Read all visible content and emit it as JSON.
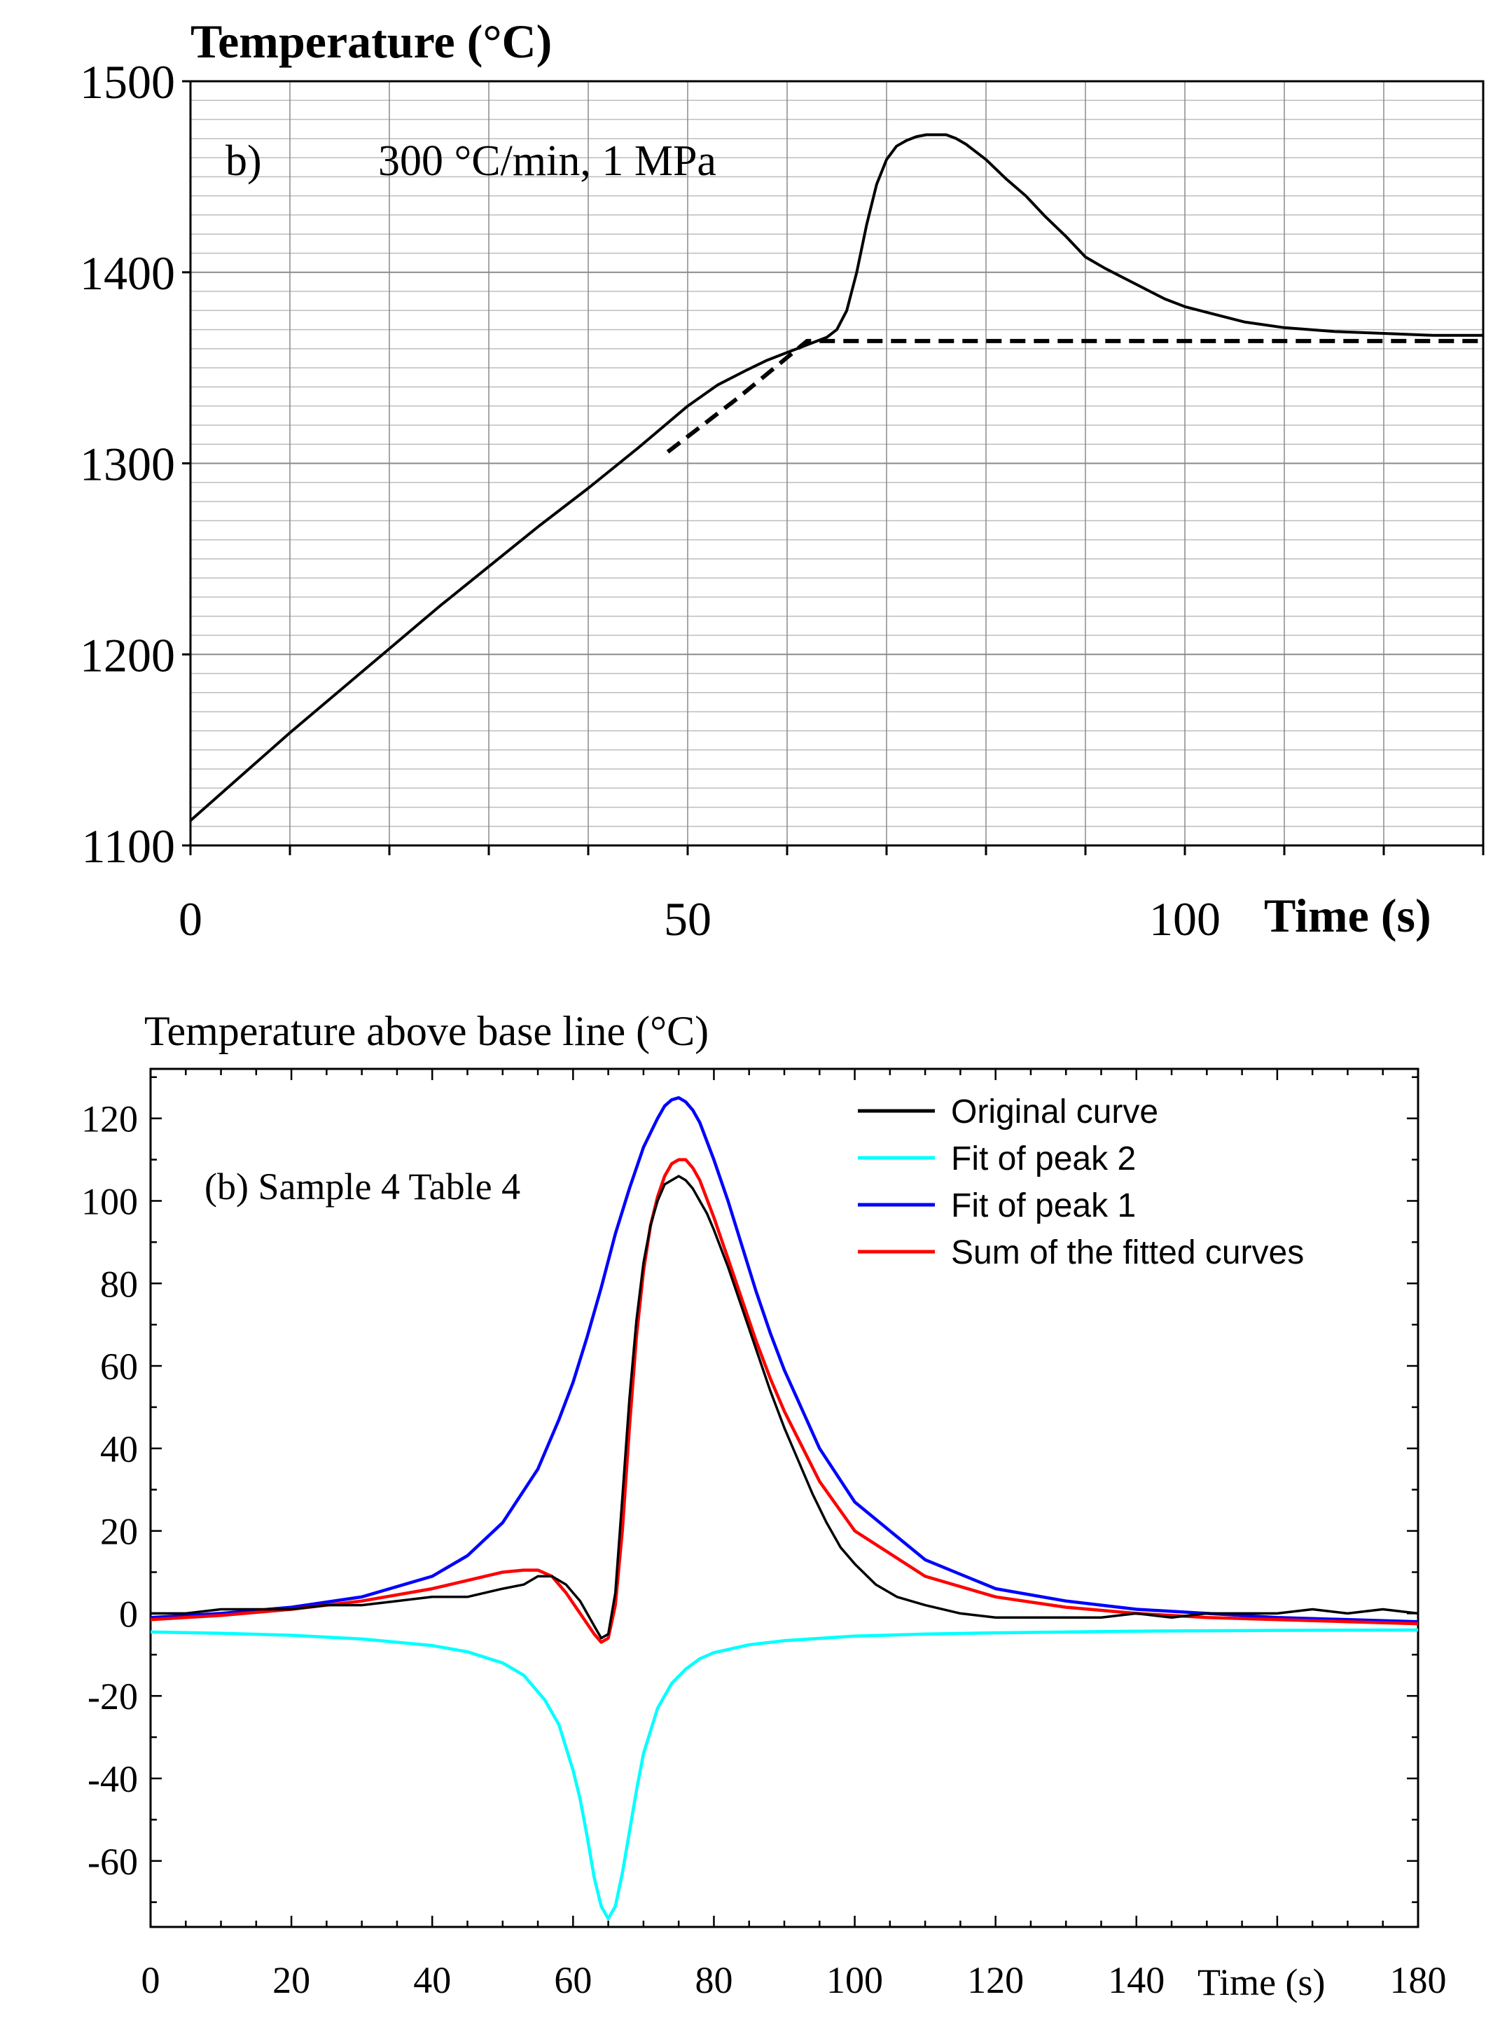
{
  "chart_data": [
    {
      "type": "line",
      "panel": "top",
      "title": "Temperature (°C)",
      "annotation_label": "b)",
      "annotation_text": "300 °C/min, 1 MPa",
      "xlabel": "Time (s)",
      "ylabel": "Temperature (°C)",
      "xlim": [
        0,
        130
      ],
      "ylim": [
        1100,
        1500
      ],
      "x_ticks": [
        "0",
        "50",
        "100"
      ],
      "x_tick_values": [
        0,
        50,
        100
      ],
      "y_ticks": [
        "1500",
        "1400",
        "1300",
        "1200",
        "1100"
      ],
      "y_tick_values": [
        1500,
        1400,
        1300,
        1200,
        1100
      ],
      "grid": true,
      "series": [
        {
          "name": "measured temperature",
          "style": "solid",
          "color": "#000000",
          "x": [
            0,
            5,
            10,
            15,
            20,
            25,
            30,
            35,
            40,
            45,
            50,
            53,
            56,
            58,
            60,
            62,
            64,
            65,
            66,
            67,
            68,
            69,
            70,
            71,
            72,
            73,
            74,
            75,
            76,
            77,
            78,
            80,
            82,
            84,
            86,
            88,
            90,
            92,
            95,
            98,
            100,
            103,
            106,
            110,
            115,
            120,
            125,
            130
          ],
          "y": [
            1113,
            1136,
            1159,
            1181,
            1203,
            1225,
            1246,
            1267,
            1287,
            1308,
            1330,
            1341,
            1349,
            1354,
            1358,
            1362,
            1366,
            1370,
            1380,
            1400,
            1425,
            1446,
            1459,
            1466,
            1469,
            1471,
            1472,
            1472,
            1472,
            1470,
            1467,
            1459,
            1449,
            1440,
            1429,
            1419,
            1408,
            1402,
            1394,
            1386,
            1382,
            1378,
            1374,
            1371,
            1369,
            1368,
            1367,
            1367
          ]
        },
        {
          "name": "base line",
          "style": "dashed",
          "color": "#000000",
          "x": [
            48,
            55,
            62,
            130
          ],
          "y": [
            1306,
            1334,
            1364,
            1364
          ]
        }
      ]
    },
    {
      "type": "line",
      "panel": "bottom",
      "title": "Temperature above base line (°C)",
      "annotation_text": "(b) Sample 4 Table 4",
      "xlabel": "Time (s)",
      "ylabel": "Temperature above base line (°C)",
      "xlim": [
        0,
        180
      ],
      "ylim": [
        -76,
        132
      ],
      "x_ticks": [
        "0",
        "20",
        "40",
        "60",
        "80",
        "100",
        "120",
        "140",
        "180"
      ],
      "x_tick_values": [
        0,
        20,
        40,
        60,
        80,
        100,
        120,
        140,
        180
      ],
      "y_ticks": [
        "120",
        "100",
        "80",
        "60",
        "40",
        "20",
        "0",
        "-20",
        "-40",
        "-60"
      ],
      "y_tick_values": [
        120,
        100,
        80,
        60,
        40,
        20,
        0,
        -20,
        -40,
        -60
      ],
      "grid": false,
      "legend_position": "top-right",
      "series": [
        {
          "name": "Original curve",
          "color": "#000000",
          "x": [
            0,
            5,
            10,
            15,
            20,
            25,
            30,
            35,
            40,
            45,
            50,
            53,
            55,
            57,
            59,
            61,
            63,
            64,
            65,
            66,
            67,
            68,
            69,
            70,
            71,
            72,
            73,
            74,
            75,
            76,
            77,
            78,
            79,
            80,
            82,
            84,
            86,
            88,
            90,
            92,
            94,
            96,
            98,
            100,
            103,
            106,
            110,
            115,
            120,
            125,
            130,
            135,
            140,
            145,
            150,
            155,
            160,
            165,
            170,
            175,
            180
          ],
          "y": [
            0,
            0,
            1,
            1,
            1,
            2,
            2,
            3,
            4,
            4,
            6,
            7,
            9,
            9,
            7,
            3,
            -3,
            -6,
            -5,
            5,
            28,
            52,
            71,
            85,
            94,
            100,
            104,
            105,
            106,
            105,
            103,
            100,
            97,
            93,
            84,
            74,
            64,
            54,
            45,
            37,
            29,
            22,
            16,
            12,
            7,
            4,
            2,
            0,
            -1,
            -1,
            -1,
            -1,
            0,
            -1,
            0,
            0,
            0,
            1,
            0,
            1,
            0
          ]
        },
        {
          "name": "Fit of peak 2",
          "color": "#00ffff",
          "x": [
            0,
            10,
            20,
            30,
            40,
            45,
            50,
            53,
            56,
            58,
            60,
            61,
            62,
            63,
            64,
            65,
            66,
            67,
            68,
            69,
            70,
            72,
            74,
            76,
            78,
            80,
            85,
            90,
            100,
            110,
            120,
            140,
            160,
            180
          ],
          "y": [
            -4.5,
            -4.8,
            -5.3,
            -6.2,
            -7.8,
            -9.3,
            -12,
            -15,
            -21,
            -27,
            -38,
            -45,
            -54,
            -64,
            -71,
            -74,
            -71,
            -63,
            -53,
            -43,
            -34,
            -23,
            -17,
            -13.5,
            -11,
            -9.5,
            -7.6,
            -6.6,
            -5.5,
            -5,
            -4.7,
            -4.3,
            -4.1,
            -4
          ]
        },
        {
          "name": "Fit of peak 1",
          "color": "#0000ff",
          "x": [
            0,
            10,
            20,
            30,
            40,
            45,
            50,
            55,
            58,
            60,
            62,
            64,
            66,
            68,
            70,
            72,
            73,
            74,
            75,
            76,
            77,
            78,
            80,
            82,
            84,
            86,
            88,
            90,
            95,
            100,
            110,
            120,
            130,
            140,
            150,
            160,
            180
          ],
          "y": [
            -1,
            0,
            1.5,
            4,
            9,
            14,
            22,
            35,
            47,
            56,
            67,
            79,
            92,
            103,
            113,
            120,
            123,
            124.5,
            125,
            124,
            122,
            119,
            110,
            100,
            89,
            78,
            68,
            59,
            40,
            27,
            13,
            6,
            3,
            1,
            0,
            -1,
            -2
          ]
        },
        {
          "name": "Sum of the fitted curves",
          "color": "#ff0000",
          "x": [
            0,
            10,
            20,
            30,
            40,
            45,
            50,
            53,
            55,
            57,
            59,
            61,
            63,
            64,
            65,
            66,
            67,
            68,
            69,
            70,
            71,
            72,
            73,
            74,
            75,
            76,
            77,
            78,
            80,
            82,
            84,
            86,
            88,
            90,
            95,
            100,
            110,
            120,
            130,
            140,
            150,
            160,
            170,
            180
          ],
          "y": [
            -1.5,
            -0.5,
            1,
            3,
            6,
            8,
            10,
            10.5,
            10.5,
            9,
            5,
            0,
            -5,
            -7,
            -6,
            2,
            20,
            45,
            67,
            83,
            94,
            101,
            106,
            109,
            110,
            110,
            108,
            105,
            96,
            86,
            76,
            66,
            57,
            49,
            32,
            20,
            9,
            4,
            1.5,
            0,
            -1,
            -1.5,
            -2,
            -2.5
          ]
        }
      ]
    }
  ]
}
